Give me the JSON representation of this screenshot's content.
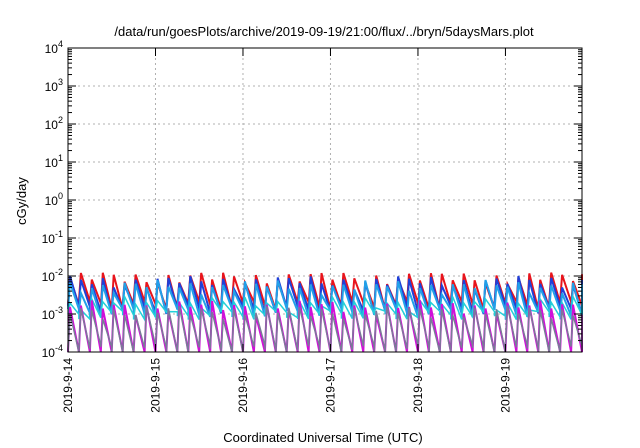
{
  "chart_data": {
    "type": "line",
    "title": "/data/run/goesPlots/archive/2019-09-19/21:00/flux/../bryn/5daysMars.plot",
    "xlabel": "Coordinated Universal Time (UTC)",
    "ylabel": "cGy/day",
    "yscale": "log",
    "ylim": [
      0.0001,
      10000
    ],
    "xlim": [
      "2019-09-14",
      "2019-09-19 21:00"
    ],
    "grid": true,
    "x_ticks": [
      "2019-9-14",
      "2019-9-15",
      "2019-9-16",
      "2019-9-17",
      "2019-9-18",
      "2019-9-19"
    ],
    "y_ticks": [
      {
        "value": 0.0001,
        "base": "10",
        "exp": "-4"
      },
      {
        "value": 0.001,
        "base": "10",
        "exp": "-3"
      },
      {
        "value": 0.01,
        "base": "10",
        "exp": "-2"
      },
      {
        "value": 0.1,
        "base": "10",
        "exp": "-1"
      },
      {
        "value": 1,
        "base": "10",
        "exp": "0"
      },
      {
        "value": 10,
        "base": "10",
        "exp": "1"
      },
      {
        "value": 100,
        "base": "10",
        "exp": "2"
      },
      {
        "value": 1000,
        "base": "10",
        "exp": "3"
      },
      {
        "value": 10000,
        "base": "10",
        "exp": "4"
      }
    ],
    "series": [
      {
        "color": "#e8141c",
        "peak": 0.0092,
        "trough": 0.0017,
        "width": 2.0
      },
      {
        "color": "#2040d8",
        "peak": 0.0072,
        "trough": 0.0013,
        "width": 2.0
      },
      {
        "color": "#22a0e8",
        "peak": 0.0055,
        "trough": 0.0011,
        "width": 2.0
      },
      {
        "color": "#23d0d8",
        "peak": 0.002,
        "trough": 0.00095,
        "width": 1.5
      },
      {
        "color": "#d010d8",
        "peak": 0.0016,
        "trough": 7e-05,
        "width": 2.0
      },
      {
        "color": "#7a7a98",
        "peak": 0.0012,
        "trough": 0.00012,
        "width": 1.5
      }
    ],
    "sawtooth_period_hours": 3
  }
}
